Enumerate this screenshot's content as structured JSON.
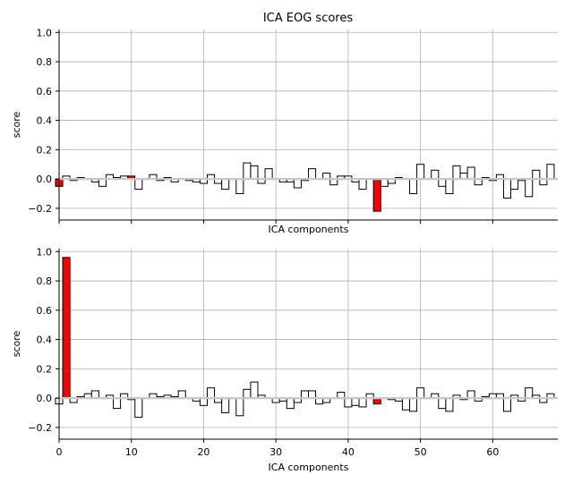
{
  "figure": {
    "title": "ICA EOG scores"
  },
  "chart_data": [
    {
      "type": "bar",
      "title": "ICA EOG scores",
      "xlabel": "ICA components",
      "ylabel": "score",
      "xlim": [
        0,
        69
      ],
      "ylim": [
        -0.28,
        1.02
      ],
      "xticks": [
        0,
        10,
        20,
        30,
        40,
        50,
        60
      ],
      "show_xtick_labels": false,
      "yticks": [
        -0.2,
        0.0,
        0.2,
        0.4,
        0.6,
        0.8,
        1.0
      ],
      "ytick_labels": [
        "−0.2",
        "0.0",
        "0.2",
        "0.4",
        "0.6",
        "0.8",
        "1.0"
      ],
      "grid": true,
      "bar_color": "#ffffff",
      "highlight_color": "#ff0000",
      "edge_color": "#000000",
      "highlighted": [
        0,
        10,
        44
      ],
      "values": [
        -0.05,
        0.02,
        -0.01,
        0.01,
        0.0,
        -0.02,
        -0.05,
        0.03,
        0.01,
        0.02,
        0.02,
        -0.07,
        0.0,
        0.03,
        -0.01,
        0.01,
        -0.02,
        0.0,
        -0.01,
        -0.02,
        -0.03,
        0.03,
        -0.03,
        -0.07,
        0.0,
        -0.1,
        0.11,
        0.09,
        -0.03,
        0.07,
        0.0,
        -0.02,
        -0.02,
        -0.06,
        -0.01,
        0.07,
        0.0,
        0.04,
        -0.04,
        0.02,
        0.02,
        -0.02,
        -0.07,
        0.0,
        -0.22,
        -0.05,
        -0.03,
        0.01,
        0.0,
        -0.1,
        0.1,
        0.0,
        0.06,
        -0.05,
        -0.1,
        0.09,
        0.04,
        0.08,
        -0.04,
        0.01,
        -0.01,
        0.03,
        -0.13,
        -0.07,
        -0.01,
        -0.12,
        0.06,
        -0.04,
        0.1
      ]
    },
    {
      "type": "bar",
      "title": "",
      "xlabel": "ICA components",
      "ylabel": "score",
      "xlim": [
        0,
        69
      ],
      "ylim": [
        -0.28,
        1.02
      ],
      "xticks": [
        0,
        10,
        20,
        30,
        40,
        50,
        60
      ],
      "xtick_labels": [
        "0",
        "10",
        "20",
        "30",
        "40",
        "50",
        "60"
      ],
      "show_xtick_labels": true,
      "yticks": [
        -0.2,
        0.0,
        0.2,
        0.4,
        0.6,
        0.8,
        1.0
      ],
      "ytick_labels": [
        "−0.2",
        "0.0",
        "0.2",
        "0.4",
        "0.6",
        "0.8",
        "1.0"
      ],
      "grid": true,
      "bar_color": "#ffffff",
      "highlight_color": "#ff0000",
      "edge_color": "#000000",
      "highlighted": [
        1,
        44
      ],
      "values": [
        -0.04,
        0.96,
        -0.03,
        0.01,
        0.03,
        0.05,
        0.0,
        0.02,
        -0.07,
        0.03,
        -0.01,
        -0.13,
        0.0,
        0.03,
        0.01,
        0.02,
        0.01,
        0.05,
        0.0,
        -0.02,
        -0.05,
        0.07,
        -0.03,
        -0.1,
        0.0,
        -0.12,
        0.06,
        0.11,
        0.02,
        0.0,
        -0.03,
        -0.02,
        -0.07,
        -0.03,
        0.05,
        0.05,
        -0.04,
        -0.03,
        0.0,
        0.04,
        -0.06,
        -0.05,
        -0.06,
        0.03,
        -0.04,
        0.0,
        -0.01,
        -0.02,
        -0.08,
        -0.09,
        0.07,
        0.0,
        0.03,
        -0.07,
        -0.09,
        0.02,
        -0.01,
        0.05,
        -0.02,
        0.01,
        0.03,
        0.03,
        -0.09,
        0.02,
        -0.02,
        0.07,
        0.02,
        -0.03,
        0.03
      ]
    }
  ]
}
